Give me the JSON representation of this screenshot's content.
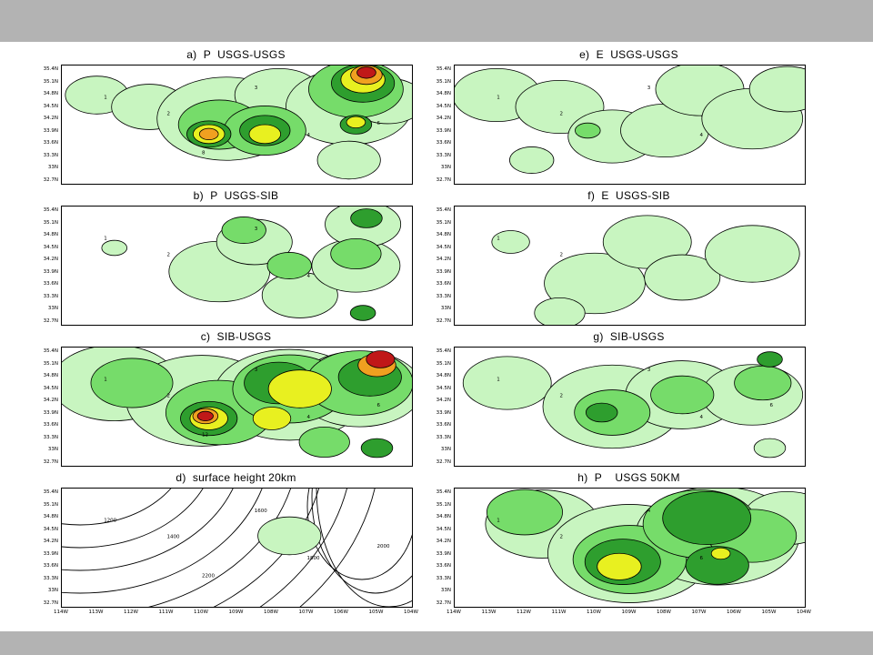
{
  "colors": {
    "band": "#b3b3b3",
    "levels": [
      "#ffffff",
      "#c8f5c0",
      "#76dc6a",
      "#2e9e2e",
      "#e8f020",
      "#f0a020",
      "#c01818"
    ]
  },
  "chart_data": [
    {
      "type": "contour",
      "title": "a)  P  USGS-USGS",
      "y_tick_labels": [
        "35.4N",
        "35.1N",
        "34.8N",
        "34.5N",
        "34.2N",
        "33.9N",
        "33.6N",
        "33.3N",
        "33N",
        "32.7N"
      ],
      "x_tick_labels": [],
      "grid": false,
      "contour_labels": [
        "1",
        "2",
        "3",
        "4",
        "6",
        "8"
      ],
      "blobs": [
        {
          "x": 0.1,
          "y": 0.25,
          "r": 0.1,
          "level": 1
        },
        {
          "x": 0.25,
          "y": 0.35,
          "r": 0.12,
          "level": 1
        },
        {
          "x": 0.47,
          "y": 0.45,
          "r": 0.22,
          "level": 1
        },
        {
          "x": 0.62,
          "y": 0.25,
          "r": 0.14,
          "level": 1
        },
        {
          "x": 0.82,
          "y": 0.35,
          "r": 0.2,
          "level": 1
        },
        {
          "x": 0.93,
          "y": 0.3,
          "r": 0.12,
          "level": 1
        },
        {
          "x": 0.82,
          "y": 0.8,
          "r": 0.1,
          "level": 1
        },
        {
          "x": 0.45,
          "y": 0.5,
          "r": 0.13,
          "level": 2
        },
        {
          "x": 0.58,
          "y": 0.55,
          "r": 0.13,
          "level": 2
        },
        {
          "x": 0.84,
          "y": 0.2,
          "r": 0.15,
          "level": 2
        },
        {
          "x": 0.42,
          "y": 0.58,
          "r": 0.07,
          "level": 3
        },
        {
          "x": 0.58,
          "y": 0.55,
          "r": 0.08,
          "level": 3
        },
        {
          "x": 0.86,
          "y": 0.15,
          "r": 0.1,
          "level": 3
        },
        {
          "x": 0.84,
          "y": 0.5,
          "r": 0.05,
          "level": 3
        },
        {
          "x": 0.42,
          "y": 0.58,
          "r": 0.05,
          "level": 4
        },
        {
          "x": 0.58,
          "y": 0.58,
          "r": 0.05,
          "level": 4
        },
        {
          "x": 0.86,
          "y": 0.12,
          "r": 0.07,
          "level": 4
        },
        {
          "x": 0.84,
          "y": 0.48,
          "r": 0.03,
          "level": 4
        },
        {
          "x": 0.42,
          "y": 0.58,
          "r": 0.03,
          "level": 5
        },
        {
          "x": 0.87,
          "y": 0.08,
          "r": 0.05,
          "level": 5
        },
        {
          "x": 0.87,
          "y": 0.06,
          "r": 0.03,
          "level": 6
        }
      ]
    },
    {
      "type": "contour",
      "title": "e)  E  USGS-USGS",
      "y_tick_labels": [
        "35.4N",
        "35.1N",
        "34.8N",
        "34.5N",
        "34.2N",
        "33.9N",
        "33.6N",
        "33.3N",
        "33N",
        "32.7N"
      ],
      "x_tick_labels": [],
      "grid": false,
      "contour_labels": [
        "1",
        "2",
        "3",
        "4"
      ],
      "blobs": [
        {
          "x": 0.12,
          "y": 0.25,
          "r": 0.14,
          "level": 1
        },
        {
          "x": 0.3,
          "y": 0.35,
          "r": 0.14,
          "level": 1
        },
        {
          "x": 0.45,
          "y": 0.6,
          "r": 0.14,
          "level": 1
        },
        {
          "x": 0.6,
          "y": 0.55,
          "r": 0.14,
          "level": 1
        },
        {
          "x": 0.7,
          "y": 0.2,
          "r": 0.14,
          "level": 1
        },
        {
          "x": 0.85,
          "y": 0.45,
          "r": 0.16,
          "level": 1
        },
        {
          "x": 0.95,
          "y": 0.2,
          "r": 0.12,
          "level": 1
        },
        {
          "x": 0.22,
          "y": 0.8,
          "r": 0.07,
          "level": 1
        },
        {
          "x": 0.38,
          "y": 0.55,
          "r": 0.04,
          "level": 2
        }
      ]
    },
    {
      "type": "contour",
      "title": "b)  P  USGS-SIB",
      "y_tick_labels": [
        "35.4N",
        "35.1N",
        "34.8N",
        "34.5N",
        "34.2N",
        "33.9N",
        "33.6N",
        "33.3N",
        "33N",
        "32.7N"
      ],
      "x_tick_labels": [],
      "grid": false,
      "contour_labels": [
        "1",
        "2",
        "3",
        "4"
      ],
      "blobs": [
        {
          "x": 0.15,
          "y": 0.35,
          "r": 0.04,
          "level": 1
        },
        {
          "x": 0.45,
          "y": 0.55,
          "r": 0.16,
          "level": 1
        },
        {
          "x": 0.55,
          "y": 0.3,
          "r": 0.12,
          "level": 1
        },
        {
          "x": 0.68,
          "y": 0.75,
          "r": 0.12,
          "level": 1
        },
        {
          "x": 0.84,
          "y": 0.5,
          "r": 0.14,
          "level": 1
        },
        {
          "x": 0.86,
          "y": 0.15,
          "r": 0.12,
          "level": 1
        },
        {
          "x": 0.52,
          "y": 0.2,
          "r": 0.07,
          "level": 2
        },
        {
          "x": 0.65,
          "y": 0.5,
          "r": 0.07,
          "level": 2
        },
        {
          "x": 0.84,
          "y": 0.4,
          "r": 0.08,
          "level": 2
        },
        {
          "x": 0.87,
          "y": 0.1,
          "r": 0.05,
          "level": 3
        },
        {
          "x": 0.86,
          "y": 0.9,
          "r": 0.04,
          "level": 3
        }
      ]
    },
    {
      "type": "contour",
      "title": "f)  E  USGS-SIB",
      "y_tick_labels": [
        "35.4N",
        "35.1N",
        "34.8N",
        "34.5N",
        "34.2N",
        "33.9N",
        "33.6N",
        "33.3N",
        "33N",
        "32.7N"
      ],
      "x_tick_labels": [],
      "grid": false,
      "contour_labels": [
        "1",
        "2"
      ],
      "blobs": [
        {
          "x": 0.16,
          "y": 0.3,
          "r": 0.06,
          "level": 1
        },
        {
          "x": 0.4,
          "y": 0.65,
          "r": 0.16,
          "level": 1
        },
        {
          "x": 0.55,
          "y": 0.3,
          "r": 0.14,
          "level": 1
        },
        {
          "x": 0.65,
          "y": 0.6,
          "r": 0.12,
          "level": 1
        },
        {
          "x": 0.85,
          "y": 0.4,
          "r": 0.15,
          "level": 1
        },
        {
          "x": 0.3,
          "y": 0.9,
          "r": 0.08,
          "level": 1
        }
      ]
    },
    {
      "type": "contour",
      "title": "c)  SIB-USGS",
      "y_tick_labels": [
        "35.4N",
        "35.1N",
        "34.8N",
        "34.5N",
        "34.2N",
        "33.9N",
        "33.6N",
        "33.3N",
        "33N",
        "32.7N"
      ],
      "x_tick_labels": [],
      "grid": false,
      "contour_labels": [
        "1",
        "2",
        "3",
        "4",
        "6",
        "12"
      ],
      "blobs": [
        {
          "x": 0.15,
          "y": 0.3,
          "r": 0.2,
          "level": 1
        },
        {
          "x": 0.4,
          "y": 0.45,
          "r": 0.24,
          "level": 1
        },
        {
          "x": 0.65,
          "y": 0.4,
          "r": 0.24,
          "level": 1
        },
        {
          "x": 0.85,
          "y": 0.35,
          "r": 0.2,
          "level": 1
        },
        {
          "x": 0.2,
          "y": 0.3,
          "r": 0.13,
          "level": 2
        },
        {
          "x": 0.45,
          "y": 0.55,
          "r": 0.17,
          "level": 2
        },
        {
          "x": 0.65,
          "y": 0.35,
          "r": 0.18,
          "level": 2
        },
        {
          "x": 0.85,
          "y": 0.3,
          "r": 0.17,
          "level": 2
        },
        {
          "x": 0.75,
          "y": 0.8,
          "r": 0.08,
          "level": 2
        },
        {
          "x": 0.42,
          "y": 0.6,
          "r": 0.09,
          "level": 3
        },
        {
          "x": 0.62,
          "y": 0.3,
          "r": 0.11,
          "level": 3
        },
        {
          "x": 0.88,
          "y": 0.25,
          "r": 0.1,
          "level": 3
        },
        {
          "x": 0.9,
          "y": 0.85,
          "r": 0.05,
          "level": 3
        },
        {
          "x": 0.42,
          "y": 0.6,
          "r": 0.06,
          "level": 4
        },
        {
          "x": 0.68,
          "y": 0.35,
          "r": 0.1,
          "level": 4
        },
        {
          "x": 0.6,
          "y": 0.6,
          "r": 0.06,
          "level": 4
        },
        {
          "x": 0.41,
          "y": 0.58,
          "r": 0.04,
          "level": 5
        },
        {
          "x": 0.9,
          "y": 0.15,
          "r": 0.06,
          "level": 5
        },
        {
          "x": 0.41,
          "y": 0.58,
          "r": 0.025,
          "level": 6
        },
        {
          "x": 0.91,
          "y": 0.1,
          "r": 0.045,
          "level": 6
        }
      ]
    },
    {
      "type": "contour",
      "title": "g)  SIB-USGS",
      "y_tick_labels": [
        "35.4N",
        "35.1N",
        "34.8N",
        "34.5N",
        "34.2N",
        "33.9N",
        "33.6N",
        "33.3N",
        "33N",
        "32.7N"
      ],
      "x_tick_labels": [],
      "grid": false,
      "contour_labels": [
        "1",
        "2",
        "3",
        "4",
        "6"
      ],
      "blobs": [
        {
          "x": 0.15,
          "y": 0.3,
          "r": 0.14,
          "level": 1
        },
        {
          "x": 0.45,
          "y": 0.5,
          "r": 0.22,
          "level": 1
        },
        {
          "x": 0.65,
          "y": 0.4,
          "r": 0.18,
          "level": 1
        },
        {
          "x": 0.85,
          "y": 0.4,
          "r": 0.16,
          "level": 1
        },
        {
          "x": 0.9,
          "y": 0.85,
          "r": 0.05,
          "level": 1
        },
        {
          "x": 0.45,
          "y": 0.55,
          "r": 0.12,
          "level": 2
        },
        {
          "x": 0.65,
          "y": 0.4,
          "r": 0.1,
          "level": 2
        },
        {
          "x": 0.88,
          "y": 0.3,
          "r": 0.09,
          "level": 2
        },
        {
          "x": 0.42,
          "y": 0.55,
          "r": 0.05,
          "level": 3
        },
        {
          "x": 0.9,
          "y": 0.1,
          "r": 0.04,
          "level": 3
        }
      ]
    },
    {
      "type": "contour",
      "title": "d)  surface height 20km",
      "y_tick_labels": [
        "35.4N",
        "35.1N",
        "34.8N",
        "34.5N",
        "34.2N",
        "33.9N",
        "33.6N",
        "33.3N",
        "33N",
        "32.7N"
      ],
      "x_tick_labels": [
        "114W",
        "113W",
        "112W",
        "111W",
        "110W",
        "109W",
        "108W",
        "107W",
        "106W",
        "105W",
        "104W"
      ],
      "grid": false,
      "contour_labels": [
        "1200",
        "1400",
        "1600",
        "1800",
        "2000",
        "2200"
      ],
      "blobs": [
        {
          "x": 0.65,
          "y": 0.4,
          "r": 0.1,
          "level": 1
        }
      ]
    },
    {
      "type": "contour",
      "title": "h)  P    USGS 50KM",
      "y_tick_labels": [
        "35.4N",
        "35.1N",
        "34.8N",
        "34.5N",
        "34.2N",
        "33.9N",
        "33.6N",
        "33.3N",
        "33N",
        "32.7N"
      ],
      "x_tick_labels": [
        "114W",
        "113W",
        "112W",
        "111W",
        "110W",
        "109W",
        "108W",
        "107W",
        "106W",
        "105W",
        "104W"
      ],
      "grid": false,
      "contour_labels": [
        "1",
        "2",
        "4",
        "6"
      ],
      "blobs": [
        {
          "x": 0.25,
          "y": 0.3,
          "r": 0.18,
          "level": 1
        },
        {
          "x": 0.5,
          "y": 0.55,
          "r": 0.26,
          "level": 1
        },
        {
          "x": 0.75,
          "y": 0.4,
          "r": 0.26,
          "level": 1
        },
        {
          "x": 0.95,
          "y": 0.25,
          "r": 0.14,
          "level": 1
        },
        {
          "x": 0.2,
          "y": 0.2,
          "r": 0.12,
          "level": 2
        },
        {
          "x": 0.5,
          "y": 0.6,
          "r": 0.18,
          "level": 2
        },
        {
          "x": 0.7,
          "y": 0.3,
          "r": 0.18,
          "level": 2
        },
        {
          "x": 0.85,
          "y": 0.4,
          "r": 0.14,
          "level": 2
        },
        {
          "x": 0.48,
          "y": 0.62,
          "r": 0.12,
          "level": 3
        },
        {
          "x": 0.72,
          "y": 0.25,
          "r": 0.14,
          "level": 3
        },
        {
          "x": 0.75,
          "y": 0.65,
          "r": 0.1,
          "level": 3
        },
        {
          "x": 0.47,
          "y": 0.66,
          "r": 0.07,
          "level": 4
        },
        {
          "x": 0.76,
          "y": 0.55,
          "r": 0.03,
          "level": 4
        }
      ]
    }
  ]
}
